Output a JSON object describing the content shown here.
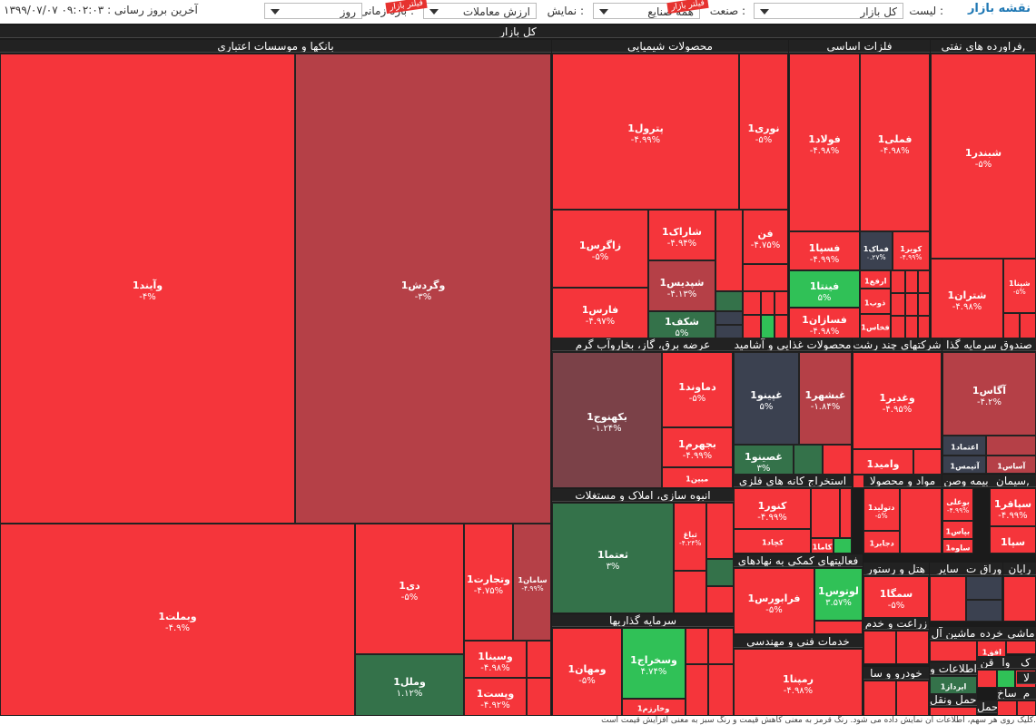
{
  "header": {
    "brand": "نقشه بازار",
    "list_label": "لیست :",
    "list_value": "کل بازار",
    "industry_label": "صنعت :",
    "industry_value": "همه صنایع",
    "display_label": "نمایش :",
    "display_value": "ارزش معاملات",
    "period_label": "بازه زمانی :",
    "period_value": "روز",
    "last_update": "آخرین بروز رسانی : ۰۹:۰۲:۰۳ ۱۳۹۹/۰۷/۰۷",
    "ribbon_1": "فیلتر بازار",
    "ribbon_2": "فیلتر بازار"
  },
  "colors": {
    "red": "#f5353b",
    "red_dark": "#b54047",
    "maroon": "#7b4148",
    "green": "#30c157",
    "green_dark": "#34724a",
    "slate": "#3b4150",
    "header_bg": "#222222"
  },
  "map": {
    "title": "کل بازار",
    "sectors": [
      {
        "name": "بانکها و موسسات اعتباری"
      },
      {
        "name": "محصولات شیمیایی"
      },
      {
        "name": "فلزات اساسی"
      },
      {
        "name": "فراورده های نفتی,"
      },
      {
        "name": "عرضه برق، گاز، بخاروآب گرم"
      },
      {
        "name": "محصولات غذایی و آشامید"
      },
      {
        "name": "شرکتهای چند رشت"
      },
      {
        "name": "صندوق سرمایه گذا"
      },
      {
        "name": "انبوه سازی، املاک و مستغلات"
      },
      {
        "name": "استخراج کانه های فلزی"
      },
      {
        "name": "مواد و محصولا"
      },
      {
        "name": "بیمه وصن"
      },
      {
        "name": "سیمان,"
      },
      {
        "name": "فعالیتهای کمکی به نهادهای"
      },
      {
        "name": "هتل و رستور"
      },
      {
        "name": "سایر"
      },
      {
        "name": "اوراق ت"
      },
      {
        "name": "رایان"
      },
      {
        "name": "سرمایه گذاریها"
      },
      {
        "name": "زراعت و خدم"
      },
      {
        "name": "ماشین آل"
      },
      {
        "name": "خرده"
      },
      {
        "name": "ماشی"
      },
      {
        "name": "خدمات فنی و مهندسی"
      },
      {
        "name": "خودرو و سا"
      },
      {
        "name": "اطلاعات و"
      },
      {
        "name": "قن"
      },
      {
        "name": "وا"
      },
      {
        "name": "ک"
      },
      {
        "name": "ساخ"
      },
      {
        "name": "م"
      },
      {
        "name": "حمل ونقل,"
      },
      {
        "name": "حمل"
      },
      {
        "name": "لا"
      }
    ],
    "stocks": [
      {
        "name": "وآیند1",
        "change": "-۴%"
      },
      {
        "name": "وگردش1",
        "change": "-۳%"
      },
      {
        "name": "وبملت1",
        "change": "-۴.۹%"
      },
      {
        "name": "دی1",
        "change": "-۵%"
      },
      {
        "name": "وتجارت1",
        "change": "-۴.۷۵%"
      },
      {
        "name": "سامان1",
        "change": "-۴.۹۹%"
      },
      {
        "name": "وسینا1",
        "change": "-۴.۹۸%"
      },
      {
        "name": "وپست1",
        "change": "-۴.۹۲%"
      },
      {
        "name": "وملل1",
        "change": "۱.۱۲%"
      },
      {
        "name": "پترول1",
        "change": "-۴.۹۹%"
      },
      {
        "name": "نوری1",
        "change": "-۵%"
      },
      {
        "name": "زاگرس1",
        "change": "-۵%"
      },
      {
        "name": "شاراک1",
        "change": "-۴.۹۴%"
      },
      {
        "name": "شپدیس1",
        "change": "-۴.۱۳%"
      },
      {
        "name": "فارس1",
        "change": "-۴.۹۷%"
      },
      {
        "name": "شکف1",
        "change": "۵%"
      },
      {
        "name": "فن",
        "change": "-۴.۷۵%"
      },
      {
        "name": "فولاد1",
        "change": "-۴.۹۸%"
      },
      {
        "name": "فملی1",
        "change": "-۴.۹۸%"
      },
      {
        "name": "فسپا1",
        "change": "-۴.۹۹%"
      },
      {
        "name": "فماک1",
        "change": "۰.۲۷%"
      },
      {
        "name": "کویر1",
        "change": "-۴.۹۹%"
      },
      {
        "name": "فینتا1",
        "change": "۵%"
      },
      {
        "name": "ارفع1",
        "change": ""
      },
      {
        "name": "ذوب1",
        "change": ""
      },
      {
        "name": "فسازان1",
        "change": "-۴.۹۸%"
      },
      {
        "name": "فخاس1",
        "change": ""
      },
      {
        "name": "شبندر1",
        "change": "-۵%"
      },
      {
        "name": "شتران1",
        "change": "-۴.۹۸%"
      },
      {
        "name": "شپنا1",
        "change": "-۵%"
      },
      {
        "name": "بکهنوج1",
        "change": "-۱.۲۴%"
      },
      {
        "name": "دماوند1",
        "change": "-۵%"
      },
      {
        "name": "بجهرم1",
        "change": "-۴.۹۹%"
      },
      {
        "name": "مبین1",
        "change": ""
      },
      {
        "name": "غپینو1",
        "change": "۵%"
      },
      {
        "name": "غبشهر1",
        "change": "-۱.۸۴%"
      },
      {
        "name": "غصینو1",
        "change": "۳%"
      },
      {
        "name": "وغدیر1",
        "change": "-۴.۹۵%"
      },
      {
        "name": "وامید1",
        "change": ""
      },
      {
        "name": "آگاس1",
        "change": "-۴.۲%"
      },
      {
        "name": "اعتماد1",
        "change": ""
      },
      {
        "name": "آتیمس1",
        "change": ""
      },
      {
        "name": "آساس1",
        "change": ""
      },
      {
        "name": "ثعتما1",
        "change": "۳%"
      },
      {
        "name": "ثباغ",
        "change": "-۴.۲۴%"
      },
      {
        "name": "کنور1",
        "change": "-۴.۹۹%"
      },
      {
        "name": "کچاد1",
        "change": ""
      },
      {
        "name": "کاما1",
        "change": ""
      },
      {
        "name": "دتولید1",
        "change": "-۵%"
      },
      {
        "name": "دجابر1",
        "change": ""
      },
      {
        "name": "بوعلی",
        "change": "-۴.۹۹%"
      },
      {
        "name": "بپاس1",
        "change": ""
      },
      {
        "name": "ساوه1",
        "change": ""
      },
      {
        "name": "سپاقر1",
        "change": "-۴.۹۹%"
      },
      {
        "name": "سپا1",
        "change": ""
      },
      {
        "name": "فرابورس1",
        "change": "-۵%"
      },
      {
        "name": "لوتوس1",
        "change": "۳.۵۷%"
      },
      {
        "name": "سمگا1",
        "change": "-۵%"
      },
      {
        "name": "ومهان1",
        "change": "-۵%"
      },
      {
        "name": "وسخراج1",
        "change": "۴.۷۴%"
      },
      {
        "name": "وخارزم1",
        "change": ""
      },
      {
        "name": "رمپنا1",
        "change": "-۴.۹۸%"
      },
      {
        "name": "افق1",
        "change": ""
      },
      {
        "name": "ایرداز1",
        "change": ""
      }
    ]
  },
  "footer": {
    "text": "کلیک روی هر سهم، اطلاعات آن نمایش داده می شود. رنگ قرمز به معنی کاهش قیمت و رنگ سبز به معنی افزایش قیمت است."
  }
}
